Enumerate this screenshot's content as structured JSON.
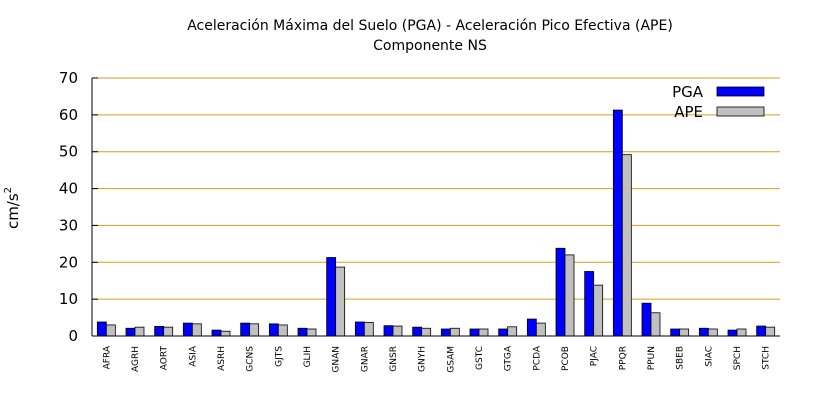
{
  "chart_data": {
    "type": "bar",
    "title_line1": "Aceleración Máxima del Suelo (PGA) -  Aceleración Pico Efectiva (APE)",
    "title_line2": "Componente NS",
    "ylabel_base": "cm/s",
    "ylabel_exp": "2",
    "xlabel": "",
    "ylim": [
      0,
      70
    ],
    "yticks": [
      0,
      10,
      20,
      30,
      40,
      50,
      60,
      70
    ],
    "grid": true,
    "legend_position": "top-right",
    "categories": [
      "AFRA",
      "AGRH",
      "AORT",
      "ASIA",
      "ASRH",
      "GCNS",
      "GJTS",
      "GLIH",
      "GNAN",
      "GNAR",
      "GNSR",
      "GNYH",
      "GSAM",
      "GSTC",
      "GTGA",
      "PCDA",
      "PCOB",
      "PJAC",
      "PPQR",
      "PPUN",
      "SBEB",
      "SIAC",
      "SPCH",
      "STCH"
    ],
    "series": [
      {
        "name": "PGA",
        "color": "#0000ff",
        "values": [
          3.8,
          2.1,
          2.6,
          3.5,
          1.6,
          3.5,
          3.3,
          2.1,
          21.3,
          3.8,
          2.8,
          2.4,
          1.9,
          1.9,
          1.9,
          4.6,
          23.8,
          17.5,
          61.3,
          8.9,
          1.9,
          2.1,
          1.6,
          2.7
        ]
      },
      {
        "name": "APE",
        "color": "#c0c0c0",
        "values": [
          3.0,
          2.4,
          2.4,
          3.3,
          1.3,
          3.3,
          3.0,
          1.9,
          18.7,
          3.7,
          2.7,
          2.1,
          2.1,
          1.9,
          2.5,
          3.5,
          22.0,
          13.8,
          49.2,
          6.3,
          1.9,
          1.9,
          1.9,
          2.4
        ]
      }
    ],
    "colors": {
      "grid": "#d4a017",
      "axis": "#000000",
      "bar_edge": "#000000"
    }
  }
}
